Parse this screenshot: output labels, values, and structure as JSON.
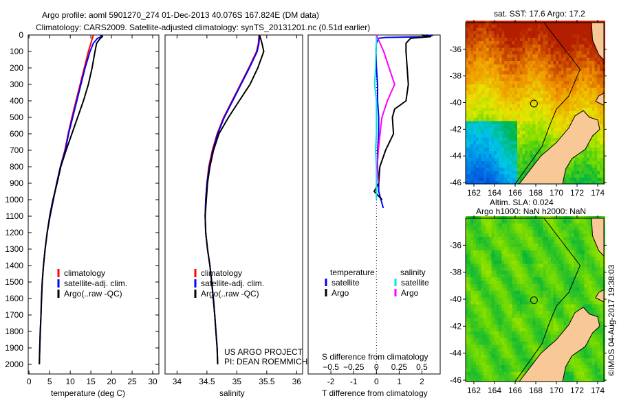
{
  "title_line1": "Argo profile: aoml 5901270_274 01-Dec-2013 40.076S 167.824E (DM data)",
  "title_line2": "Climatology: CARS2009. Satellite-adjusted climatology: synTS_20131201.nc (0.51d earlier)",
  "side_stamp": "©IMOS 04-Aug-2017 19:38:03",
  "colors": {
    "climatology": "#ff0000",
    "satellite": "#0000ff",
    "argo": "#000000",
    "sal_satellite": "#00e5e5",
    "sal_argo": "#ff00ff",
    "land": "#f9c897"
  },
  "chart_data": [
    {
      "type": "line",
      "name": "temperature",
      "xlabel": "temperature (deg C)",
      "ylabel": "",
      "xlim": [
        -0.2,
        31.5
      ],
      "ylim": [
        0,
        2100
      ],
      "xticks": [
        0,
        5,
        10,
        15,
        20,
        25,
        30
      ],
      "yticks": [
        0,
        100,
        200,
        300,
        400,
        500,
        600,
        700,
        800,
        900,
        1000,
        1100,
        1200,
        1300,
        1400,
        1500,
        1600,
        1700,
        1800,
        1900,
        2000
      ],
      "legend": [
        "climatology",
        "satellite-adj. clim.",
        "Argo(..raw -QC)"
      ],
      "series": [
        {
          "name": "climatology",
          "color": "#ff0000",
          "depth": [
            0,
            50,
            100,
            200,
            300,
            400,
            500,
            600,
            700,
            800,
            900,
            1000,
            1100
          ],
          "values": [
            15.6,
            15.0,
            14.4,
            13.4,
            12.4,
            11.4,
            10.4,
            9.5,
            8.7,
            7.6,
            6.7,
            5.9,
            5.1
          ]
        },
        {
          "name": "satellite-adj. clim.",
          "color": "#0000ff",
          "depth": [
            0,
            10,
            20,
            50,
            100,
            200,
            300,
            400,
            500,
            600,
            700,
            800,
            900,
            1000,
            1100,
            1200,
            1300,
            1400,
            1500,
            1600,
            1700,
            1800,
            1900,
            2000
          ],
          "values": [
            17.3,
            17.6,
            16.6,
            15.6,
            14.8,
            13.6,
            12.6,
            11.6,
            10.6,
            9.6,
            8.8,
            7.6,
            6.7,
            5.9,
            5.1,
            4.4,
            3.9,
            3.5,
            3.2,
            3.0,
            2.9,
            2.7,
            2.6,
            2.5
          ]
        },
        {
          "name": "Argo(..raw -QC)",
          "color": "#000000",
          "depth": [
            0,
            10,
            20,
            50,
            100,
            200,
            300,
            400,
            500,
            600,
            700,
            800,
            900,
            1000,
            1100,
            1200,
            1300,
            1400,
            1500,
            1700,
            1900,
            2000
          ],
          "values": [
            17.6,
            17.8,
            17.3,
            16.4,
            16.0,
            15.3,
            14.4,
            13.2,
            11.8,
            10.4,
            9.0,
            7.7,
            6.8,
            5.8,
            5.0,
            4.4,
            3.9,
            3.5,
            3.2,
            2.9,
            2.6,
            2.5
          ]
        }
      ]
    },
    {
      "type": "line",
      "name": "salinity",
      "xlabel": "salinity",
      "xlim": [
        33.8,
        36.1
      ],
      "ylim": [
        0,
        2100
      ],
      "xticks": [
        34,
        34.5,
        35,
        35.5,
        36
      ],
      "legend": [
        "climatology",
        "satellite-adj. clim.",
        "Argo(..raw -QC)"
      ],
      "annotation": [
        "US ARGO PROJECT",
        "PI: DEAN ROEMMICH"
      ],
      "series": [
        {
          "name": "climatology",
          "color": "#ff0000",
          "depth": [
            0,
            50,
            100,
            200,
            300,
            400,
            500,
            600,
            700,
            800,
            900,
            1000,
            1100
          ],
          "values": [
            35.37,
            35.36,
            35.33,
            35.2,
            35.06,
            34.92,
            34.78,
            34.67,
            34.59,
            34.53,
            34.5,
            34.48,
            34.47
          ]
        },
        {
          "name": "satellite-adj. clim.",
          "color": "#0000ff",
          "depth": [
            0,
            50,
            100,
            200,
            300,
            400,
            500,
            600,
            700,
            800,
            900,
            1000,
            1100,
            1200,
            1300,
            1400,
            1500,
            1600,
            1700,
            1800,
            1900,
            2000
          ],
          "values": [
            35.38,
            35.37,
            35.34,
            35.21,
            35.07,
            34.93,
            34.79,
            34.68,
            34.6,
            34.54,
            34.5,
            34.48,
            34.47,
            34.48,
            34.51,
            34.55,
            34.58,
            34.61,
            34.63,
            34.65,
            34.67,
            34.68
          ]
        },
        {
          "name": "Argo(..raw -QC)",
          "color": "#000000",
          "depth": [
            0,
            50,
            100,
            200,
            300,
            400,
            500,
            600,
            700,
            800,
            900,
            1000,
            1100,
            1200,
            1300,
            1400,
            1500,
            1700,
            1900,
            2000
          ],
          "values": [
            35.38,
            35.42,
            35.45,
            35.35,
            35.22,
            35.04,
            34.86,
            34.7,
            34.61,
            34.55,
            34.51,
            34.49,
            34.47,
            34.48,
            34.51,
            34.55,
            34.58,
            34.63,
            34.67,
            34.68
          ]
        }
      ]
    },
    {
      "type": "line",
      "name": "difference",
      "xlabel": "T difference from climatology",
      "x2label": "S difference from climatology",
      "xlim": [
        -3,
        2.8
      ],
      "ylim": [
        0,
        2100
      ],
      "xticks": [
        -2,
        -1,
        0,
        1,
        2
      ],
      "x2ticks": [
        -0.5,
        -0.25,
        0,
        0.25,
        0.5
      ],
      "legend_titles": [
        "temperature",
        "salinity"
      ],
      "legend": [
        "satellite",
        "Argo",
        "satellite",
        "Argo"
      ],
      "series": [
        {
          "name": "T satellite",
          "color": "#0000ff",
          "axis": "T",
          "depth": [
            0,
            5,
            10,
            15,
            20,
            50,
            100,
            200,
            300,
            400,
            500,
            600,
            700,
            800,
            900,
            950,
            1000,
            1050
          ],
          "values": [
            2.2,
            2.4,
            2.3,
            0.4,
            0.1,
            0.0,
            -0.02,
            0.0,
            0.05,
            0.05,
            0.1,
            0.1,
            0.05,
            0.05,
            0.1,
            0.1,
            0.2,
            0.3
          ]
        },
        {
          "name": "T Argo",
          "color": "#000000",
          "axis": "T",
          "depth": [
            0,
            5,
            10,
            20,
            50,
            100,
            200,
            300,
            400,
            450,
            500,
            600,
            700,
            800,
            900,
            950,
            1000
          ],
          "values": [
            2.0,
            2.2,
            2.4,
            1.5,
            1.3,
            1.3,
            1.35,
            1.4,
            1.3,
            0.8,
            0.7,
            0.75,
            0.4,
            0.15,
            0.1,
            -0.1,
            0.25
          ]
        },
        {
          "name": "S satellite",
          "color": "#00e5e5",
          "axis": "S",
          "depth": [
            0,
            50,
            100,
            200,
            300,
            400,
            500,
            600,
            700,
            800,
            900,
            1000
          ],
          "values": [
            0.0,
            0.0,
            -0.005,
            -0.01,
            -0.02,
            0.0,
            0.0,
            0.0,
            -0.01,
            0.0,
            0.0,
            0.0
          ]
        },
        {
          "name": "S Argo",
          "color": "#ff00ff",
          "axis": "S",
          "depth": [
            0,
            50,
            100,
            200,
            300,
            400,
            500,
            600,
            700,
            800,
            900
          ],
          "values": [
            0.0,
            0.04,
            0.08,
            0.14,
            0.2,
            0.12,
            0.06,
            0.04,
            0.02,
            0.01,
            0.02
          ]
        }
      ]
    },
    {
      "type": "heatmap",
      "name": "sst-map",
      "title": "sat. SST: 17.6 Argo: 17.2",
      "xticks": [
        162,
        164,
        166,
        168,
        170,
        172,
        174
      ],
      "yticks": [
        -36,
        -38,
        -40,
        -42,
        -44,
        -46
      ],
      "xlim": [
        161.2,
        174.6
      ],
      "ylim": [
        -46.1,
        -34
      ],
      "marker": [
        167.824,
        -40.076
      ]
    },
    {
      "type": "heatmap",
      "name": "sla-map",
      "title": [
        "Altim. SLA: 0.024",
        "Argo h1000: NaN h2000: NaN"
      ],
      "xticks": [
        162,
        164,
        166,
        168,
        170,
        172,
        174
      ],
      "yticks": [
        -36,
        -38,
        -40,
        -42,
        -44,
        -46
      ],
      "xlim": [
        161.2,
        174.6
      ],
      "ylim": [
        -46.1,
        -34
      ],
      "marker": [
        167.824,
        -40.076
      ]
    }
  ]
}
